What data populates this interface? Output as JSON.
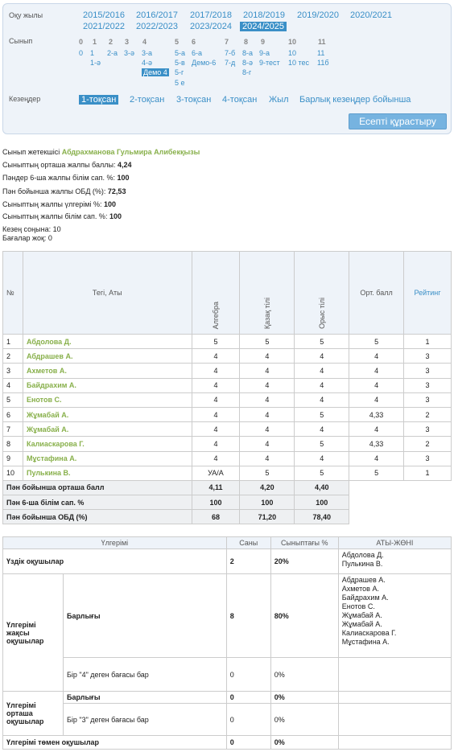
{
  "filter": {
    "year_label": "Оқу жылы",
    "years": [
      "2015/2016",
      "2016/2017",
      "2017/2018",
      "2018/2019",
      "2019/2020",
      "2020/2021",
      "2021/2022",
      "2022/2023",
      "2023/2024",
      "2024/2025"
    ],
    "class_label": "Сынып",
    "grades": [
      "0",
      "1",
      "2",
      "3",
      "4",
      "5",
      "6",
      "7",
      "8",
      "9",
      "10",
      "11"
    ],
    "classes": {
      "g0": [
        "0"
      ],
      "g1": [
        "1",
        "1-ә"
      ],
      "g2": [
        "2-а"
      ],
      "g3": [
        "3-ә"
      ],
      "g4": [
        "3-а",
        "4-ә",
        "Демо 4"
      ],
      "g5": [
        "5-а",
        "5-в",
        "5-г",
        "5 е"
      ],
      "g6": [
        "6-а",
        "Демо-6"
      ],
      "g7": [
        "7-б",
        "7-д"
      ],
      "g8": [
        "8-а",
        "8-ә",
        "8-г"
      ],
      "g9": [
        "9-а",
        "9-тест"
      ],
      "g10": [
        "10",
        "10 тес"
      ],
      "g11": [
        "11",
        "11б"
      ]
    },
    "period_label": "Кезеңдер",
    "periods": [
      "1-тоқсан",
      "2-тоқсан",
      "3-тоқсан",
      "4-тоқсан",
      "Жыл",
      "Барлық кезеңдер бойынша"
    ],
    "build_button": "Есепті құрастыру"
  },
  "info": {
    "teacher_label": "Сынып жетекшісі ",
    "teacher": "Абдрахманова Гульмира Алибекқызы",
    "avg_label": "Сыныптың орташа жалпы баллы: ",
    "avg": "4,24",
    "quality_label": "Пәндер 6-ша жалпы білім сап. %: ",
    "quality": "100",
    "obd_label": "Пән бойынша жалпы ОБД (%): ",
    "obd": "72,53",
    "progress_label": "Сыныптың жалпы үлгерімі %: ",
    "progress": "100",
    "kq_label": "Сыныптың жалпы білім сап. %: ",
    "kq": "100",
    "end_label": "Кезең соңына: 10",
    "no_grades": "Бағалар жоқ: 0"
  },
  "table": {
    "headers": {
      "num": "№",
      "name": "Тегі, Аты",
      "s1": "Алгебра",
      "s2": "Қазақ тілі",
      "s3": "Орыс тілі",
      "avg": "Орт. балл",
      "rating": "Рейтинг"
    },
    "rows": [
      {
        "n": "1",
        "name": "Абдолова Д.",
        "s1": "5",
        "s2": "5",
        "s3": "5",
        "avg": "5",
        "r": "1"
      },
      {
        "n": "2",
        "name": "Абдрашев А.",
        "s1": "4",
        "s2": "4",
        "s3": "4",
        "avg": "4",
        "r": "3"
      },
      {
        "n": "3",
        "name": "Ахметов А.",
        "s1": "4",
        "s2": "4",
        "s3": "4",
        "avg": "4",
        "r": "3"
      },
      {
        "n": "4",
        "name": "Байдрахим А.",
        "s1": "4",
        "s2": "4",
        "s3": "4",
        "avg": "4",
        "r": "3"
      },
      {
        "n": "5",
        "name": "Енотов С.",
        "s1": "4",
        "s2": "4",
        "s3": "4",
        "avg": "4",
        "r": "3"
      },
      {
        "n": "6",
        "name": "Жұмабай А.",
        "s1": "4",
        "s2": "4",
        "s3": "5",
        "avg": "4,33",
        "r": "2"
      },
      {
        "n": "7",
        "name": "Жұмабай А.",
        "s1": "4",
        "s2": "4",
        "s3": "4",
        "avg": "4",
        "r": "3"
      },
      {
        "n": "8",
        "name": "Калиаскарова Г.",
        "s1": "4",
        "s2": "4",
        "s3": "5",
        "avg": "4,33",
        "r": "2"
      },
      {
        "n": "9",
        "name": "Мұстафина А.",
        "s1": "4",
        "s2": "4",
        "s3": "4",
        "avg": "4",
        "r": "3"
      },
      {
        "n": "10",
        "name": "Пулькина В.",
        "s1": "УА/А",
        "s2": "5",
        "s3": "5",
        "avg": "5",
        "r": "1"
      }
    ],
    "summary": [
      {
        "label": "Пән бойынша орташа балл",
        "s1": "4,11",
        "s2": "4,20",
        "s3": "4,40"
      },
      {
        "label": "Пән 6-ша білім сап. %",
        "s1": "100",
        "s2": "100",
        "s3": "100"
      },
      {
        "label": "Пән бойынша ОБД (%)",
        "s1": "68",
        "s2": "71,20",
        "s3": "78,40"
      }
    ]
  },
  "stats": {
    "h_progress": "Үлгерімі",
    "h_count": "Саны",
    "h_percent": "Сыныптағы %",
    "h_names": "АТЫ-ЖӨНІ",
    "excellent": {
      "label": "Үздік оқушылар",
      "count": "2",
      "pct": "20%",
      "names": [
        "Абдолова Д.",
        "Пулькина В."
      ]
    },
    "good": {
      "label": "Үлгерімі жақсы оқушылар",
      "all": "Барлығы",
      "count": "8",
      "pct": "80%",
      "names": [
        "Абдрашев А.",
        "Ахметов А.",
        "Байдрахим А.",
        "Енотов С.",
        "Жұмабай А.",
        "Жұмабай А.",
        "Калиаскарова Г.",
        "Мұстафина А."
      ],
      "one4": "Бір \"4\" деген бағасы бар",
      "one4_count": "0",
      "one4_pct": "0%"
    },
    "mid": {
      "label": "Үлгерімі орташа оқушылар",
      "all": "Барлығы",
      "count": "0",
      "pct": "0%",
      "one3": "Бір \"3\" деген бағасы бар",
      "one3_count": "0",
      "one3_pct": "0%"
    },
    "low": {
      "label": "Үлгерімі төмен оқушылар",
      "count": "0",
      "pct": "0%"
    }
  }
}
